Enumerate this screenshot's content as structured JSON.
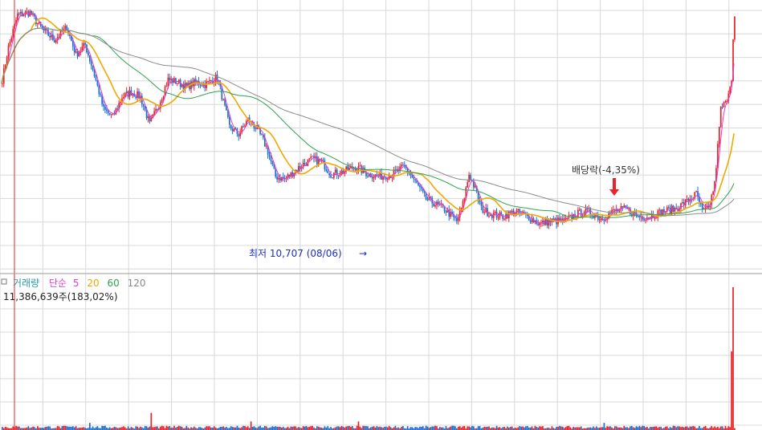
{
  "legend": {
    "icon": "square-icon",
    "volume_label": "거래량",
    "ma_label": "단순",
    "ma5": "5",
    "ma20": "20",
    "ma60": "60",
    "ma120": "120",
    "volume_value": "11,386,639주(183,02%)"
  },
  "annotations": {
    "low_label": "최저 10,707 (08/06)",
    "low_arrow": "→",
    "dividend_label": "배당락(-4,35%)"
  },
  "colors": {
    "up": "#e8232a",
    "down": "#1f6fd0",
    "ma5": "#e23bd0",
    "ma20": "#f0a800",
    "ma60": "#2aa34a",
    "ma120": "#8a8a8a",
    "grid": "#d8d8d8",
    "cursor": "#e8232a",
    "annotation_blue": "#1a2fc8"
  },
  "chart_data": {
    "type": "candlestick",
    "title": "",
    "xlabel": "",
    "ylabel": "",
    "grid": true,
    "ylim": [
      9700,
      15200
    ],
    "series": [
      {
        "name": "5",
        "type": "line"
      },
      {
        "name": "20",
        "type": "line"
      },
      {
        "name": "60",
        "type": "line"
      },
      {
        "name": "120",
        "type": "line"
      }
    ],
    "close_path": [
      [
        0,
        13600
      ],
      [
        4,
        14250
      ],
      [
        10,
        14900
      ],
      [
        18,
        14950
      ],
      [
        26,
        14600
      ],
      [
        34,
        14400
      ],
      [
        42,
        14650
      ],
      [
        48,
        14100
      ],
      [
        54,
        14300
      ],
      [
        60,
        13700
      ],
      [
        66,
        13000
      ],
      [
        72,
        12850
      ],
      [
        78,
        13250
      ],
      [
        84,
        13350
      ],
      [
        90,
        13250
      ],
      [
        96,
        12700
      ],
      [
        102,
        13100
      ],
      [
        108,
        13600
      ],
      [
        114,
        13550
      ],
      [
        120,
        13450
      ],
      [
        126,
        13550
      ],
      [
        132,
        13500
      ],
      [
        140,
        13650
      ],
      [
        148,
        12650
      ],
      [
        154,
        12500
      ],
      [
        160,
        12800
      ],
      [
        166,
        12600
      ],
      [
        172,
        12250
      ],
      [
        178,
        11650
      ],
      [
        184,
        11600
      ],
      [
        190,
        11750
      ],
      [
        196,
        11900
      ],
      [
        202,
        12000
      ],
      [
        208,
        11950
      ],
      [
        214,
        11700
      ],
      [
        222,
        11750
      ],
      [
        230,
        11850
      ],
      [
        238,
        11700
      ],
      [
        246,
        11650
      ],
      [
        254,
        11700
      ],
      [
        262,
        11850
      ],
      [
        270,
        11500
      ],
      [
        276,
        11200
      ],
      [
        282,
        11100
      ],
      [
        288,
        11000
      ],
      [
        296,
        10750
      ],
      [
        300,
        11100
      ],
      [
        304,
        11700
      ],
      [
        308,
        11400
      ],
      [
        312,
        11000
      ],
      [
        318,
        10900
      ],
      [
        326,
        10850
      ],
      [
        334,
        10950
      ],
      [
        342,
        10850
      ],
      [
        350,
        10700
      ],
      [
        358,
        10760
      ],
      [
        366,
        10750
      ],
      [
        374,
        10900
      ],
      [
        382,
        10950
      ],
      [
        390,
        10800
      ],
      [
        398,
        10950
      ],
      [
        406,
        11000
      ],
      [
        414,
        10850
      ],
      [
        422,
        10850
      ],
      [
        430,
        10950
      ],
      [
        438,
        11000
      ],
      [
        446,
        11150
      ],
      [
        452,
        11300
      ],
      [
        456,
        10950
      ],
      [
        460,
        11000
      ],
      [
        464,
        11500
      ],
      [
        468,
        13000
      ],
      [
        472,
        13200
      ],
      [
        475,
        13600
      ],
      [
        476,
        14400
      ],
      [
        477,
        14850
      ]
    ],
    "annotated_points": [
      {
        "label": "최저",
        "value": 10707,
        "date": "08/06"
      },
      {
        "label": "배당락",
        "change_pct": -4.35
      }
    ],
    "volume": {
      "name": "거래량",
      "last_value": 11386639,
      "unit": "주",
      "pct_vs_prev": 183.02,
      "spikes": [
        {
          "i": 57,
          "v": 0.05
        },
        {
          "i": 97,
          "v": 0.12
        },
        {
          "i": 162,
          "v": 0.06
        },
        {
          "i": 232,
          "v": 0.06
        },
        {
          "i": 392,
          "v": 0.05
        },
        {
          "i": 475,
          "v": 0.55
        },
        {
          "i": 476,
          "v": 1.0
        }
      ]
    }
  }
}
